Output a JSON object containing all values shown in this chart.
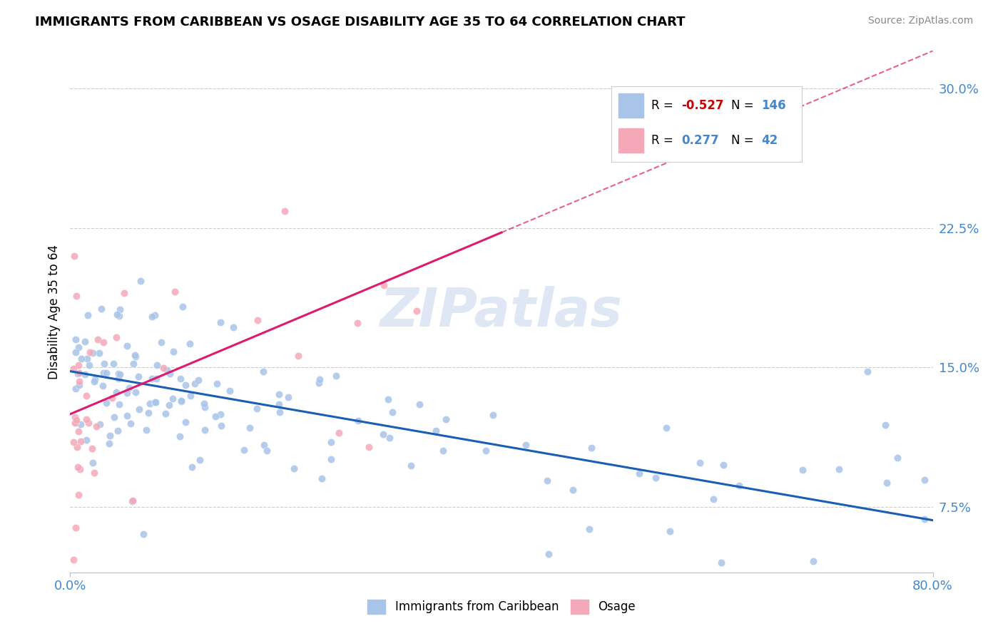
{
  "title": "IMMIGRANTS FROM CARIBBEAN VS OSAGE DISABILITY AGE 35 TO 64 CORRELATION CHART",
  "source": "Source: ZipAtlas.com",
  "ylabel": "Disability Age 35 to 64",
  "xlim": [
    0.0,
    0.8
  ],
  "ylim": [
    0.04,
    0.32
  ],
  "yticks": [
    0.075,
    0.15,
    0.225,
    0.3
  ],
  "ytick_labels": [
    "7.5%",
    "15.0%",
    "22.5%",
    "30.0%"
  ],
  "xtick_labels": [
    "0.0%",
    "80.0%"
  ],
  "legend_R1": "-0.527",
  "legend_N1": "146",
  "legend_R2": "0.277",
  "legend_N2": "42",
  "blue_color": "#a8c4e8",
  "pink_color": "#f4a8b8",
  "trend_blue": "#1a5fb4",
  "trend_pink": "#e01a6e",
  "watermark": "ZIPatlas",
  "blue_trend_x": [
    0.0,
    0.8
  ],
  "blue_trend_y": [
    0.148,
    0.068
  ],
  "pink_trend_x": [
    0.0,
    0.8
  ],
  "pink_trend_y": [
    0.125,
    0.32
  ]
}
